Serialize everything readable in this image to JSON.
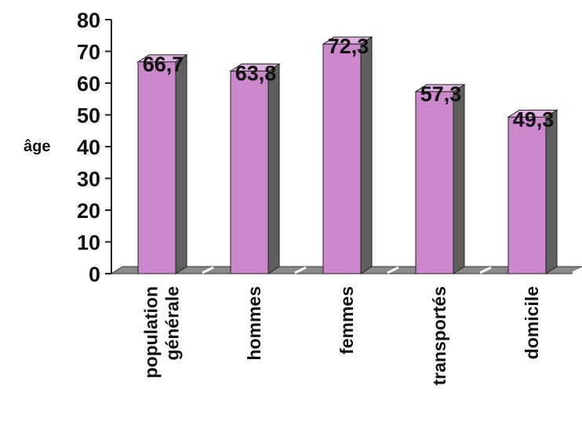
{
  "chart_data": {
    "type": "bar",
    "ylabel": "âge",
    "categories": [
      [
        "population",
        "générale"
      ],
      [
        "hommes"
      ],
      [
        "femmes"
      ],
      [
        "transportés"
      ],
      [
        "domicile"
      ]
    ],
    "values": [
      66.7,
      63.8,
      72.3,
      57.3,
      49.3
    ],
    "data_labels": [
      "66,7",
      "63,8",
      "72,3",
      "57,3",
      "49,3"
    ],
    "ylim": [
      0,
      80
    ],
    "yticks": [
      "0",
      "10",
      "20",
      "30",
      "40",
      "50",
      "60",
      "70",
      "80"
    ],
    "grid": false,
    "legend": "none",
    "style": "3d",
    "colors": {
      "bar_front": "#cc88cc",
      "bar_top": "#e2b2e2",
      "bar_side": "#5f5f5f",
      "floor": "#8a8a8a",
      "axis": "#222222"
    }
  }
}
